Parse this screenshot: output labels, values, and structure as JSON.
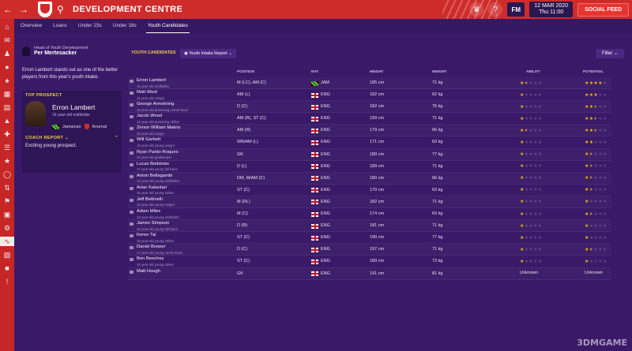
{
  "header": {
    "title": "DEVELOPMENT CENTRE",
    "fm": "FM",
    "date_line1": "12 MAR 2020",
    "date_line2": "Thu 11:00",
    "social_feed": "SOCIAL FEED"
  },
  "tabs": [
    "Overview",
    "Loans",
    "Under 23s",
    "Under 18s",
    "Youth Candidates"
  ],
  "active_tab": "Youth Candidates",
  "left": {
    "hoyd_role": "Head of Youth Development",
    "hoyd_name": "Per Mertesacker",
    "intro": "Erron Lambert stands out as one of the better players from this year's youth intake.",
    "top_prospect_label": "TOP PROSPECT",
    "prospect_name": "Erron Lambert",
    "prospect_age": "16 year-old midfielder",
    "prospect_nat": "Jamaican",
    "prospect_club": "Arsenal",
    "coach_label": "COACH REPORT",
    "coach_text": "Exciting young prospect."
  },
  "table_header": {
    "section_label": "YOUTH CANDIDATES",
    "report_dropdown": "Youth Intake Report",
    "filter": "Filter"
  },
  "columns": {
    "position": "POSITION",
    "nat": "NAT",
    "height": "HEIGHT",
    "weight": "WEIGHT",
    "ability": "ABILITY",
    "potential": "POTENTIAL"
  },
  "players": [
    {
      "name": "Erron Lambert",
      "desc": "16 year-old midfielder",
      "pos": "M (LC), AM (C)",
      "nat": "JAM",
      "height": "185 cm",
      "weight": "71 kg",
      "ability": 1.5,
      "potential": 4
    },
    {
      "name": "Matt West",
      "desc": "16 year-old winger",
      "pos": "AM (L)",
      "nat": "ENG",
      "height": "182 cm",
      "weight": "62 kg",
      "ability": 1,
      "potential": 3
    },
    {
      "name": "George Armstrong",
      "desc": "16 year-old promising centre-back",
      "pos": "D (C)",
      "nat": "ENG",
      "height": "182 cm",
      "weight": "76 kg",
      "ability": 1,
      "potential": 2.5
    },
    {
      "name": "Jacob Wood",
      "desc": "16 year-old promising striker",
      "pos": "AM (R), ST (C)",
      "nat": "ENG",
      "height": "199 cm",
      "weight": "71 kg",
      "ability": 1,
      "potential": 2.5
    },
    {
      "name": "Zenon William Makris",
      "desc": "16 year-old winger",
      "pos": "AM (R)",
      "nat": "ENG",
      "height": "179 cm",
      "weight": "66 kg",
      "ability": 1.5,
      "potential": 2.5
    },
    {
      "name": "Will Garbett",
      "desc": "16 year-old young winger",
      "pos": "WB/AM (L)",
      "nat": "ENG",
      "height": "171 cm",
      "weight": "63 kg",
      "ability": 1,
      "potential": 2
    },
    {
      "name": "Ryan Pardo-Roques",
      "desc": "16 year-old goalkeeper",
      "pos": "GK",
      "nat": "ENG",
      "height": "180 cm",
      "weight": "77 kg",
      "ability": 1,
      "potential": 1.5
    },
    {
      "name": "Lucas Beddows",
      "desc": "17 year-old young full-back",
      "pos": "D (L)",
      "nat": "ENG",
      "height": "189 cm",
      "weight": "71 kg",
      "ability": 1,
      "potential": 1.5
    },
    {
      "name": "Anton Bellagambi",
      "desc": "16 year-old young midfielder",
      "pos": "DM, M/AM (C)",
      "nat": "ENG",
      "height": "180 cm",
      "weight": "66 kg",
      "ability": 1,
      "potential": 1.5
    },
    {
      "name": "Arian Kalantari",
      "desc": "16 year-old young striker",
      "pos": "ST (C)",
      "nat": "ENG",
      "height": "170 cm",
      "weight": "63 kg",
      "ability": 1,
      "potential": 1.5
    },
    {
      "name": "Jeff Bettinelli",
      "desc": "16 year-old young winger",
      "pos": "M (RL)",
      "nat": "ENG",
      "height": "182 cm",
      "weight": "71 kg",
      "ability": 1,
      "potential": 1
    },
    {
      "name": "Adam Miles",
      "desc": "16 year-old young midfielder",
      "pos": "M (C)",
      "nat": "ENG",
      "height": "174 cm",
      "weight": "63 kg",
      "ability": 1,
      "potential": 1.5
    },
    {
      "name": "James Simpson",
      "desc": "16 year-old young full-back",
      "pos": "D (R)",
      "nat": "ENG",
      "height": "181 cm",
      "weight": "71 kg",
      "ability": 1,
      "potential": 1
    },
    {
      "name": "Keren Tal",
      "desc": "16 year-old young striker",
      "pos": "ST (C)",
      "nat": "ENG",
      "height": "190 cm",
      "weight": "77 kg",
      "ability": 1,
      "potential": 1
    },
    {
      "name": "Daniel Brewer",
      "desc": "17 year-old young centre-back",
      "pos": "D (C)",
      "nat": "ENG",
      "height": "197 cm",
      "weight": "71 kg",
      "ability": 1,
      "potential": 1.5
    },
    {
      "name": "Ben Beechey",
      "desc": "16 year-old young striker",
      "pos": "ST (C)",
      "nat": "ENG",
      "height": "189 cm",
      "weight": "73 kg",
      "ability": 1,
      "potential": 1
    },
    {
      "name": "Matt Hough",
      "desc": "",
      "pos": "GK",
      "nat": "ENG",
      "height": "191 cm",
      "weight": "81 kg",
      "ability_text": "Unknown",
      "potential_text": "Unknown"
    }
  ],
  "watermark": "3DMGAME",
  "icons": [
    "back-icon",
    "forward-icon",
    "search-icon",
    "trophy-icon",
    "help-icon"
  ]
}
